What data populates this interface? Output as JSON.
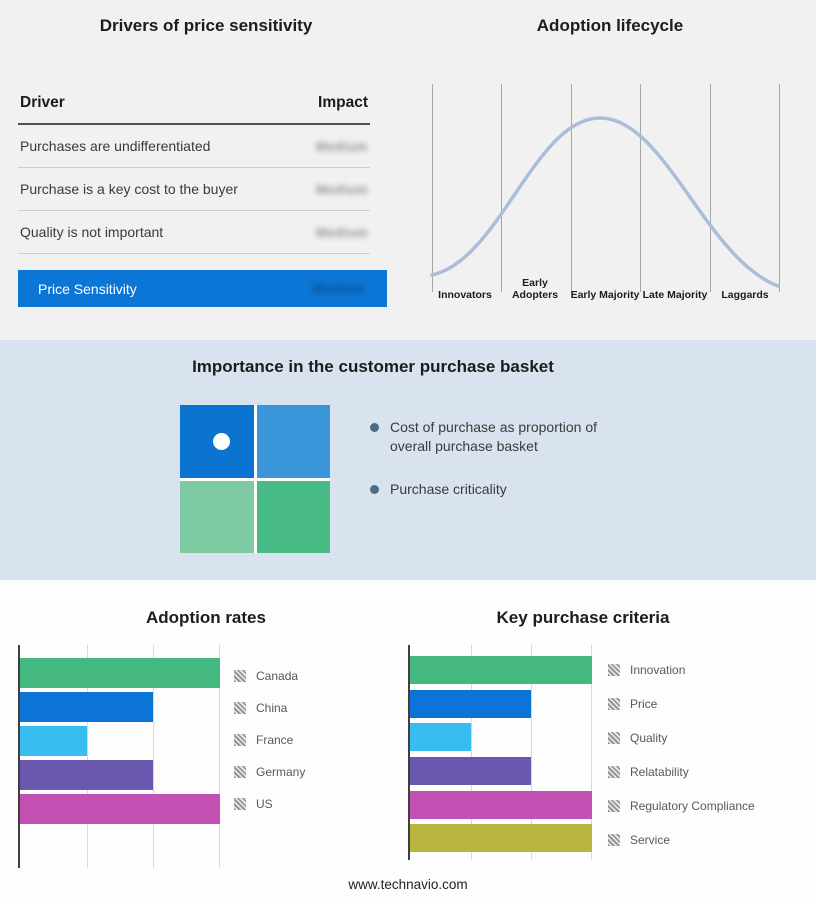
{
  "footer": {
    "text": "www.technavio.com"
  },
  "drivers_panel": {
    "title": "Drivers of price sensitivity",
    "columns": {
      "driver": "Driver",
      "impact": "Impact"
    },
    "rows": [
      {
        "driver": "Purchases are undifferentiated",
        "impact": "Medium"
      },
      {
        "driver": "Purchase is a key cost to the buyer",
        "impact": "Medium"
      },
      {
        "driver": "Quality is not important",
        "impact": "Medium"
      }
    ],
    "summary": {
      "label": "Price Sensitivity",
      "impact": "Medium",
      "background": "#0b76d6"
    },
    "impact_values_blurred": true
  },
  "basket_panel": {
    "title": "Importance in the customer purchase basket",
    "bullets": [
      "Cost of purchase as proportion of overall purchase basket",
      "Purchase criticality"
    ],
    "quadrant": {
      "top_left": "#0b74d0",
      "top_right": "#3b96db",
      "bottom_left": "#7ecaa3",
      "bottom_right": "#49bb86",
      "marker": "white-dot-in-top-left"
    },
    "band_background": "#d9e3ef"
  },
  "chart_data": [
    {
      "type": "line",
      "title": "Adoption lifecycle",
      "shape": "bell-curve",
      "categories": [
        "Innovators",
        "Early Adopters",
        "Early Majority",
        "Late Majority",
        "Laggards"
      ],
      "curve_color": "#aabed8",
      "grid": "vertical lines at stage boundaries",
      "axis_values_shown": false
    },
    {
      "type": "bar",
      "title": "Adoption rates",
      "orientation": "horizontal",
      "categories": [
        "Canada",
        "China",
        "France",
        "Germany",
        "US"
      ],
      "values": [
        3,
        2,
        1,
        2,
        3
      ],
      "xmax": 3,
      "axis_values_shown": false,
      "legend_position": "right",
      "colors": [
        "#45b87f",
        "#0b74d6",
        "#38bdf0",
        "#6a57ae",
        "#c351b3"
      ]
    },
    {
      "type": "bar",
      "title": "Key purchase criteria",
      "orientation": "horizontal",
      "categories": [
        "Innovation",
        "Price",
        "Quality",
        "Relatability",
        "Regulatory Compliance",
        "Service"
      ],
      "values": [
        3,
        2,
        1,
        2,
        3,
        3
      ],
      "xmax": 3,
      "axis_values_shown": false,
      "legend_position": "right",
      "colors": [
        "#45b87f",
        "#0b74d6",
        "#38bdf0",
        "#6a57ae",
        "#c351b3",
        "#b9b63f"
      ]
    }
  ]
}
